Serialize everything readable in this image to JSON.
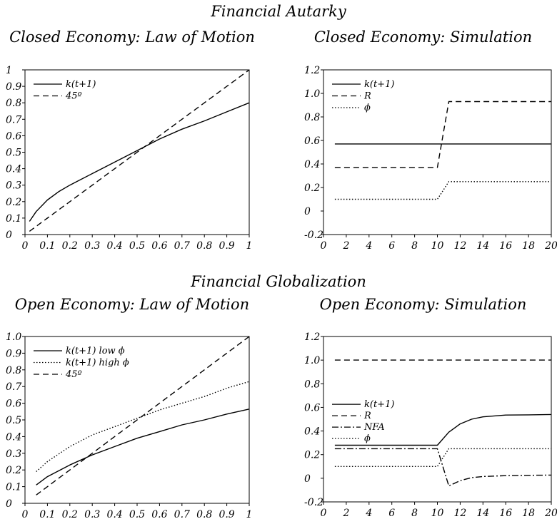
{
  "figure": {
    "section_top": "Financial Autarky",
    "section_bottom": "Financial Globalization"
  },
  "chart_data": [
    {
      "id": "closed_law",
      "type": "line",
      "title": "Closed Economy: Law of Motion",
      "xlim": [
        0,
        1
      ],
      "ylim": [
        0,
        1
      ],
      "xticks": [
        {
          "v": 0,
          "l": "0"
        },
        {
          "v": 0.1,
          "l": "0.1"
        },
        {
          "v": 0.2,
          "l": "0.2"
        },
        {
          "v": 0.3,
          "l": "0.3"
        },
        {
          "v": 0.4,
          "l": "0.4"
        },
        {
          "v": 0.5,
          "l": "0.5"
        },
        {
          "v": 0.6,
          "l": "0.6"
        },
        {
          "v": 0.7,
          "l": "0.7"
        },
        {
          "v": 0.8,
          "l": "0.8"
        },
        {
          "v": 0.9,
          "l": "0.9"
        },
        {
          "v": 1,
          "l": "1"
        }
      ],
      "yticks": [
        {
          "v": 0,
          "l": "0"
        },
        {
          "v": 0.1,
          "l": "0.1"
        },
        {
          "v": 0.2,
          "l": "0.2"
        },
        {
          "v": 0.3,
          "l": "0.3"
        },
        {
          "v": 0.4,
          "l": "0.4"
        },
        {
          "v": 0.5,
          "l": "0.5"
        },
        {
          "v": 0.6,
          "l": "0.6"
        },
        {
          "v": 0.7,
          "l": "0.7"
        },
        {
          "v": 0.8,
          "l": "0.8"
        },
        {
          "v": 0.9,
          "l": "0.9"
        },
        {
          "v": 1,
          "l": "1"
        }
      ],
      "legend": "top-left",
      "series": [
        {
          "name": "k(t+1)",
          "dash": "solid",
          "x": [
            0.02,
            0.05,
            0.1,
            0.15,
            0.2,
            0.3,
            0.4,
            0.5,
            0.6,
            0.7,
            0.8,
            0.9,
            1.0
          ],
          "y": [
            0.08,
            0.14,
            0.21,
            0.26,
            0.3,
            0.37,
            0.44,
            0.51,
            0.58,
            0.64,
            0.69,
            0.745,
            0.8
          ]
        },
        {
          "name": "45º",
          "dash": "dashed",
          "x": [
            0.02,
            1.0
          ],
          "y": [
            0.02,
            1.0
          ]
        }
      ]
    },
    {
      "id": "closed_sim",
      "type": "line",
      "title": "Closed Economy: Simulation",
      "xlim": [
        0,
        20
      ],
      "ylim": [
        -0.2,
        1.2
      ],
      "xticks": [
        {
          "v": 0,
          "l": "0"
        },
        {
          "v": 2,
          "l": "2"
        },
        {
          "v": 4,
          "l": "4"
        },
        {
          "v": 6,
          "l": "6"
        },
        {
          "v": 8,
          "l": "8"
        },
        {
          "v": 10,
          "l": "10"
        },
        {
          "v": 12,
          "l": "12"
        },
        {
          "v": 14,
          "l": "14"
        },
        {
          "v": 16,
          "l": "16"
        },
        {
          "v": 18,
          "l": "18"
        },
        {
          "v": 20,
          "l": "20"
        }
      ],
      "yticks": [
        {
          "v": -0.2,
          "l": "-0.2"
        },
        {
          "v": 0,
          "l": "0"
        },
        {
          "v": 0.2,
          "l": "0.2"
        },
        {
          "v": 0.4,
          "l": "0.4"
        },
        {
          "v": 0.6,
          "l": "0.6"
        },
        {
          "v": 0.8,
          "l": "0.8"
        },
        {
          "v": 1.0,
          "l": "1.0"
        },
        {
          "v": 1.2,
          "l": "1.2"
        }
      ],
      "legend": "top-left",
      "series": [
        {
          "name": "k(t+1)",
          "dash": "solid",
          "x": [
            1,
            20
          ],
          "y": [
            0.57,
            0.57
          ]
        },
        {
          "name": "R",
          "dash": "dashed",
          "x": [
            1,
            10,
            11,
            20
          ],
          "y": [
            0.37,
            0.37,
            0.93,
            0.93
          ]
        },
        {
          "name": "ϕ",
          "dash": "dotted",
          "x": [
            1,
            10,
            11,
            20
          ],
          "y": [
            0.1,
            0.1,
            0.25,
            0.25
          ]
        }
      ]
    },
    {
      "id": "open_law",
      "type": "line",
      "title": "Open Economy: Law of Motion",
      "xlim": [
        0,
        1
      ],
      "ylim": [
        0,
        1
      ],
      "xticks": [
        {
          "v": 0,
          "l": "0"
        },
        {
          "v": 0.1,
          "l": "0.1"
        },
        {
          "v": 0.2,
          "l": "0.2"
        },
        {
          "v": 0.3,
          "l": "0.3"
        },
        {
          "v": 0.4,
          "l": "0.4"
        },
        {
          "v": 0.5,
          "l": "0.5"
        },
        {
          "v": 0.6,
          "l": "0.6"
        },
        {
          "v": 0.7,
          "l": "0.7"
        },
        {
          "v": 0.8,
          "l": "0.8"
        },
        {
          "v": 0.9,
          "l": "0.9"
        },
        {
          "v": 1,
          "l": "1"
        }
      ],
      "yticks": [
        {
          "v": 0,
          "l": "0"
        },
        {
          "v": 0.1,
          "l": "0.1"
        },
        {
          "v": 0.2,
          "l": "0.2"
        },
        {
          "v": 0.3,
          "l": "0.3"
        },
        {
          "v": 0.4,
          "l": "0.4"
        },
        {
          "v": 0.5,
          "l": "0.5"
        },
        {
          "v": 0.6,
          "l": "0.6"
        },
        {
          "v": 0.7,
          "l": "0.7"
        },
        {
          "v": 0.8,
          "l": "0.8"
        },
        {
          "v": 0.9,
          "l": "0.9"
        },
        {
          "v": 1,
          "l": "1.0"
        }
      ],
      "legend": "top-left",
      "series": [
        {
          "name": "k(t+1) low ϕ",
          "dash": "solid",
          "x": [
            0.05,
            0.1,
            0.2,
            0.3,
            0.4,
            0.5,
            0.6,
            0.7,
            0.8,
            0.9,
            1.0
          ],
          "y": [
            0.11,
            0.16,
            0.23,
            0.29,
            0.34,
            0.39,
            0.43,
            0.47,
            0.5,
            0.535,
            0.565
          ]
        },
        {
          "name": "k(t+1) high ϕ",
          "dash": "dotted",
          "x": [
            0.05,
            0.1,
            0.2,
            0.3,
            0.4,
            0.5,
            0.6,
            0.7,
            0.8,
            0.9,
            1.0
          ],
          "y": [
            0.19,
            0.25,
            0.34,
            0.41,
            0.46,
            0.51,
            0.56,
            0.6,
            0.64,
            0.69,
            0.73
          ]
        },
        {
          "name": "45º",
          "dash": "dashed",
          "x": [
            0.05,
            1.0
          ],
          "y": [
            0.05,
            1.0
          ]
        }
      ]
    },
    {
      "id": "open_sim",
      "type": "line",
      "title": "Open Economy: Simulation",
      "xlim": [
        0,
        20
      ],
      "ylim": [
        -0.2,
        1.2
      ],
      "xticks": [
        {
          "v": 0,
          "l": "0"
        },
        {
          "v": 2,
          "l": "2"
        },
        {
          "v": 4,
          "l": "4"
        },
        {
          "v": 6,
          "l": "6"
        },
        {
          "v": 8,
          "l": "8"
        },
        {
          "v": 10,
          "l": "10"
        },
        {
          "v": 12,
          "l": "12"
        },
        {
          "v": 14,
          "l": "14"
        },
        {
          "v": 16,
          "l": "16"
        },
        {
          "v": 18,
          "l": "18"
        },
        {
          "v": 20,
          "l": "20"
        }
      ],
      "yticks": [
        {
          "v": -0.2,
          "l": "-0.2"
        },
        {
          "v": 0,
          "l": "0"
        },
        {
          "v": 0.2,
          "l": "0.2"
        },
        {
          "v": 0.4,
          "l": "0.4"
        },
        {
          "v": 0.6,
          "l": "0.6"
        },
        {
          "v": 0.8,
          "l": "0.8"
        },
        {
          "v": 1.0,
          "l": "1.0"
        },
        {
          "v": 1.2,
          "l": "1.2"
        }
      ],
      "legend": "middle-left",
      "series": [
        {
          "name": "k(t+1)",
          "dash": "solid",
          "x": [
            1,
            10,
            11,
            12,
            13,
            14,
            16,
            18,
            20
          ],
          "y": [
            0.28,
            0.28,
            0.39,
            0.46,
            0.5,
            0.52,
            0.535,
            0.537,
            0.54
          ]
        },
        {
          "name": "R",
          "dash": "dashed",
          "x": [
            1,
            20
          ],
          "y": [
            1.0,
            1.0
          ]
        },
        {
          "name": "NFA",
          "dash": "dashdot",
          "x": [
            1,
            10,
            11,
            12,
            13,
            14,
            16,
            18,
            20
          ],
          "y": [
            0.25,
            0.25,
            -0.065,
            -0.02,
            0.005,
            0.015,
            0.022,
            0.025,
            0.027
          ]
        },
        {
          "name": "ϕ",
          "dash": "dotted",
          "x": [
            1,
            10,
            11,
            20
          ],
          "y": [
            0.1,
            0.1,
            0.25,
            0.25
          ]
        }
      ]
    }
  ]
}
